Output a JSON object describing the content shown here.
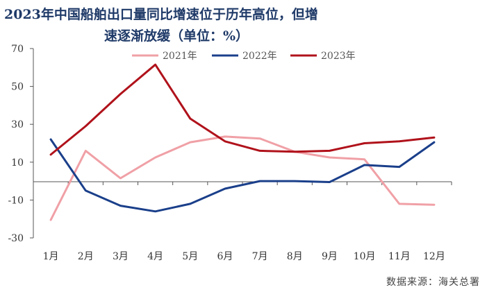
{
  "title_lines": [
    "2023年中国船舶出口量同比增速位于历年高位，但增",
    "速逐渐放缓（单位：%）"
  ],
  "source": "数据来源：海关总署",
  "colors": {
    "2021年": "#f0a0a6",
    "2022年": "#1a3f8a",
    "2023年": "#b0121b",
    "axis": "#555555"
  },
  "chart_data": {
    "type": "line",
    "title": "2023年中国船舶出口量同比增速位于历年高位，但增速逐渐放缓（单位：%）",
    "categories": [
      "1月",
      "2月",
      "3月",
      "4月",
      "5月",
      "6月",
      "7月",
      "8月",
      "9月",
      "10月",
      "11月",
      "12月"
    ],
    "yticks": [
      70,
      50,
      30,
      10,
      -10,
      -30
    ],
    "ylim": [
      -30,
      70
    ],
    "grid": false,
    "legend_position": "top-center",
    "series": [
      {
        "name": "2021年",
        "values": [
          -20.5,
          16,
          1.5,
          12.5,
          20.5,
          23.5,
          22.5,
          15.5,
          12.5,
          11.5,
          -12,
          -12.5
        ]
      },
      {
        "name": "2022年",
        "values": [
          22,
          -5,
          -13,
          -16,
          -12,
          -4,
          0,
          0,
          -0.5,
          8.5,
          7.5,
          20.5
        ]
      },
      {
        "name": "2023年",
        "values": [
          14,
          29,
          46,
          61.5,
          33,
          21,
          16,
          15.5,
          16,
          20,
          21,
          23
        ]
      }
    ]
  }
}
